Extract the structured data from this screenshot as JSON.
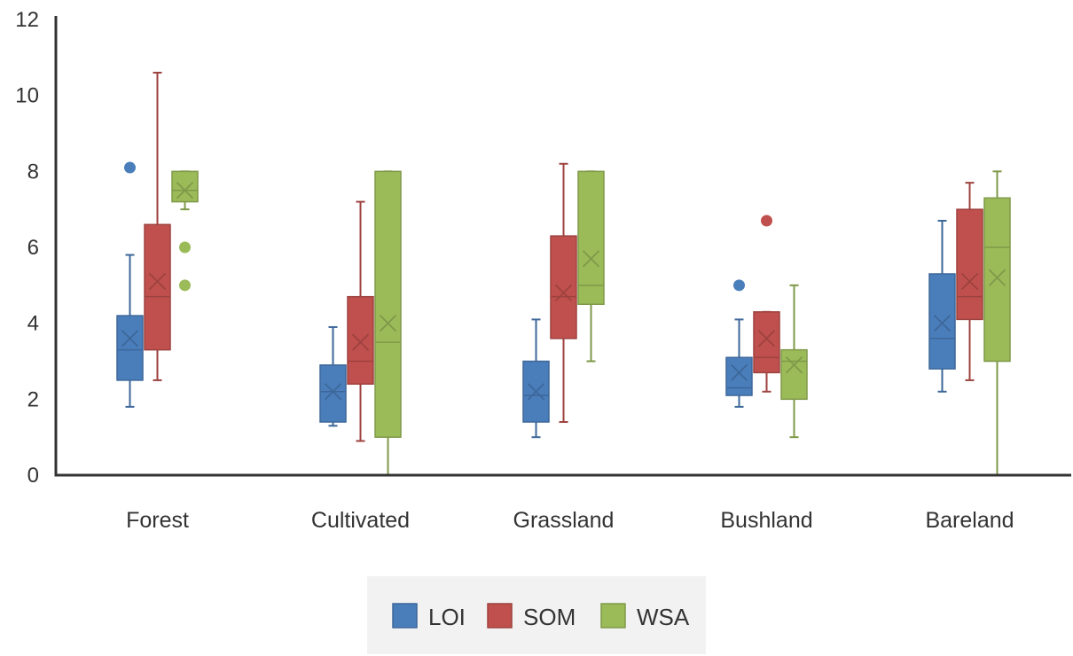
{
  "chart_data": {
    "type": "box",
    "categories": [
      "Forest",
      "Cultivated",
      "Grassland",
      "Bushland",
      "Bareland"
    ],
    "ylim": [
      0,
      12
    ],
    "yticks": [
      "0",
      "2",
      "4",
      "6",
      "8",
      "10",
      "12"
    ],
    "grid": false,
    "legend_position": "bottom",
    "series": [
      {
        "name": "LOI",
        "color": "#4a7ebb",
        "boxes": [
          {
            "min": 1.8,
            "q1": 2.5,
            "median": 3.3,
            "mean": 3.6,
            "q3": 4.2,
            "max": 5.8,
            "outliers": [
              8.1
            ]
          },
          {
            "min": 1.3,
            "q1": 1.4,
            "median": 2.2,
            "mean": 2.2,
            "q3": 2.9,
            "max": 3.9,
            "outliers": []
          },
          {
            "min": 1.0,
            "q1": 1.4,
            "median": 2.1,
            "mean": 2.2,
            "q3": 3.0,
            "max": 4.1,
            "outliers": []
          },
          {
            "min": 1.8,
            "q1": 2.1,
            "median": 2.3,
            "mean": 2.7,
            "q3": 3.1,
            "max": 4.1,
            "outliers": [
              5.0
            ]
          },
          {
            "min": 2.2,
            "q1": 2.8,
            "median": 3.6,
            "mean": 4.0,
            "q3": 5.3,
            "max": 6.7,
            "outliers": []
          }
        ]
      },
      {
        "name": "SOM",
        "color": "#c0504d",
        "boxes": [
          {
            "min": 2.5,
            "q1": 3.3,
            "median": 4.7,
            "mean": 5.1,
            "q3": 6.6,
            "max": 10.6,
            "outliers": []
          },
          {
            "min": 0.9,
            "q1": 2.4,
            "median": 3.0,
            "mean": 3.5,
            "q3": 4.7,
            "max": 7.2,
            "outliers": []
          },
          {
            "min": 1.4,
            "q1": 3.6,
            "median": 4.7,
            "mean": 4.8,
            "q3": 6.3,
            "max": 8.2,
            "outliers": []
          },
          {
            "min": 2.2,
            "q1": 2.7,
            "median": 3.1,
            "mean": 3.6,
            "q3": 4.3,
            "max": 4.3,
            "outliers": [
              6.7
            ]
          },
          {
            "min": 2.5,
            "q1": 4.1,
            "median": 4.7,
            "mean": 5.1,
            "q3": 7.0,
            "max": 7.7,
            "outliers": []
          }
        ]
      },
      {
        "name": "WSA",
        "color": "#9bbb59",
        "boxes": [
          {
            "min": 7.0,
            "q1": 7.2,
            "median": 7.5,
            "mean": 7.5,
            "q3": 8.0,
            "max": 8.0,
            "outliers": [
              6.0,
              5.0
            ]
          },
          {
            "min": 0.0,
            "q1": 1.0,
            "median": 3.5,
            "mean": 4.0,
            "q3": 8.0,
            "max": 8.0,
            "outliers": []
          },
          {
            "min": 3.0,
            "q1": 4.5,
            "median": 5.0,
            "mean": 5.7,
            "q3": 8.0,
            "max": 8.0,
            "outliers": []
          },
          {
            "min": 1.0,
            "q1": 2.0,
            "median": 3.0,
            "mean": 2.9,
            "q3": 3.3,
            "max": 5.0,
            "outliers": []
          },
          {
            "min": 0.0,
            "q1": 3.0,
            "median": 6.0,
            "mean": 5.2,
            "q3": 7.3,
            "max": 8.0,
            "outliers": []
          }
        ]
      }
    ]
  }
}
